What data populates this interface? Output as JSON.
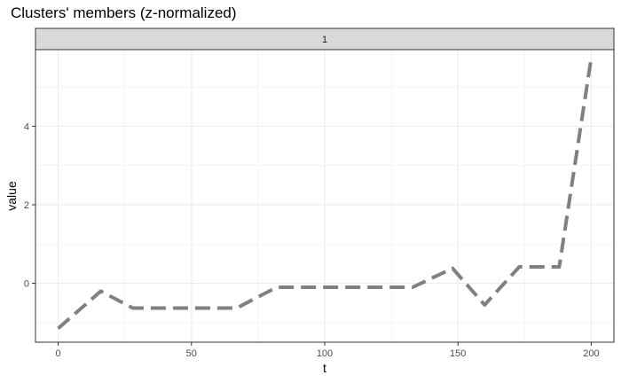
{
  "chart_data": {
    "type": "line",
    "title": "Clusters' members (z-normalized)",
    "facet_label": "1",
    "xlabel": "t",
    "ylabel": "value",
    "xlim": [
      -8.5,
      208.5
    ],
    "ylim": [
      -1.5,
      5.95
    ],
    "x_ticks": [
      0,
      50,
      100,
      150,
      200
    ],
    "y_ticks": [
      0,
      2,
      4
    ],
    "grid": true,
    "line_color": "#808080",
    "line_style": "dashed",
    "series": [
      {
        "x": [
          0,
          16,
          28,
          40,
          52,
          67,
          82,
          100,
          118,
          133,
          148,
          160,
          173,
          180,
          188,
          200
        ],
        "values": [
          -1.15,
          -0.2,
          -0.63,
          -0.63,
          -0.63,
          -0.63,
          -0.1,
          -0.1,
          -0.1,
          -0.1,
          0.38,
          -0.55,
          0.42,
          0.42,
          0.42,
          5.75
        ]
      }
    ]
  }
}
